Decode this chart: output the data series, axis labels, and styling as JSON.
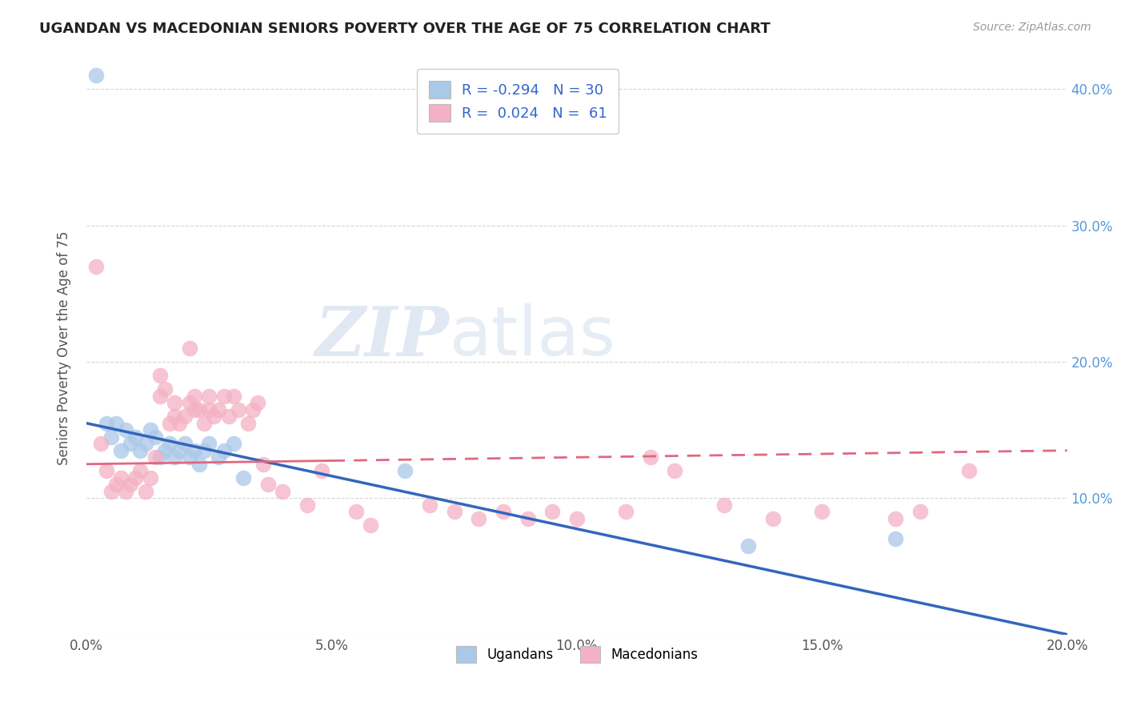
{
  "title": "UGANDAN VS MACEDONIAN SENIORS POVERTY OVER THE AGE OF 75 CORRELATION CHART",
  "source": "Source: ZipAtlas.com",
  "ylabel": "Seniors Poverty Over the Age of 75",
  "xlabel": "",
  "xlim": [
    0.0,
    0.2
  ],
  "ylim": [
    0.0,
    0.42
  ],
  "legend_r_ugandan": "-0.294",
  "legend_n_ugandan": "30",
  "legend_r_macedonian": "0.024",
  "legend_n_macedonian": "61",
  "ugandan_color": "#aac8e8",
  "macedonian_color": "#f4b0c4",
  "ugandan_line_color": "#3366bb",
  "macedonian_line_color": "#e06880",
  "watermark_zip": "ZIP",
  "watermark_atlas": "atlas",
  "ugandan_x": [
    0.002,
    0.004,
    0.005,
    0.006,
    0.007,
    0.008,
    0.009,
    0.01,
    0.011,
    0.012,
    0.013,
    0.014,
    0.015,
    0.016,
    0.017,
    0.018,
    0.019,
    0.02,
    0.021,
    0.022,
    0.023,
    0.024,
    0.025,
    0.027,
    0.028,
    0.03,
    0.032,
    0.065,
    0.135,
    0.165
  ],
  "ugandan_y": [
    0.41,
    0.155,
    0.145,
    0.155,
    0.135,
    0.15,
    0.14,
    0.145,
    0.135,
    0.14,
    0.15,
    0.145,
    0.13,
    0.135,
    0.14,
    0.13,
    0.135,
    0.14,
    0.13,
    0.135,
    0.125,
    0.135,
    0.14,
    0.13,
    0.135,
    0.14,
    0.115,
    0.12,
    0.065,
    0.07
  ],
  "macedonian_x": [
    0.002,
    0.003,
    0.004,
    0.005,
    0.006,
    0.007,
    0.008,
    0.009,
    0.01,
    0.011,
    0.012,
    0.013,
    0.014,
    0.015,
    0.015,
    0.016,
    0.017,
    0.018,
    0.018,
    0.019,
    0.02,
    0.021,
    0.021,
    0.022,
    0.022,
    0.023,
    0.024,
    0.025,
    0.025,
    0.026,
    0.027,
    0.028,
    0.029,
    0.03,
    0.031,
    0.033,
    0.034,
    0.035,
    0.036,
    0.037,
    0.04,
    0.045,
    0.048,
    0.055,
    0.058,
    0.07,
    0.075,
    0.08,
    0.085,
    0.09,
    0.095,
    0.1,
    0.11,
    0.115,
    0.12,
    0.13,
    0.14,
    0.15,
    0.165,
    0.17,
    0.18
  ],
  "macedonian_y": [
    0.27,
    0.14,
    0.12,
    0.105,
    0.11,
    0.115,
    0.105,
    0.11,
    0.115,
    0.12,
    0.105,
    0.115,
    0.13,
    0.19,
    0.175,
    0.18,
    0.155,
    0.16,
    0.17,
    0.155,
    0.16,
    0.21,
    0.17,
    0.175,
    0.165,
    0.165,
    0.155,
    0.175,
    0.165,
    0.16,
    0.165,
    0.175,
    0.16,
    0.175,
    0.165,
    0.155,
    0.165,
    0.17,
    0.125,
    0.11,
    0.105,
    0.095,
    0.12,
    0.09,
    0.08,
    0.095,
    0.09,
    0.085,
    0.09,
    0.085,
    0.09,
    0.085,
    0.09,
    0.13,
    0.12,
    0.095,
    0.085,
    0.09,
    0.085,
    0.09,
    0.12
  ]
}
